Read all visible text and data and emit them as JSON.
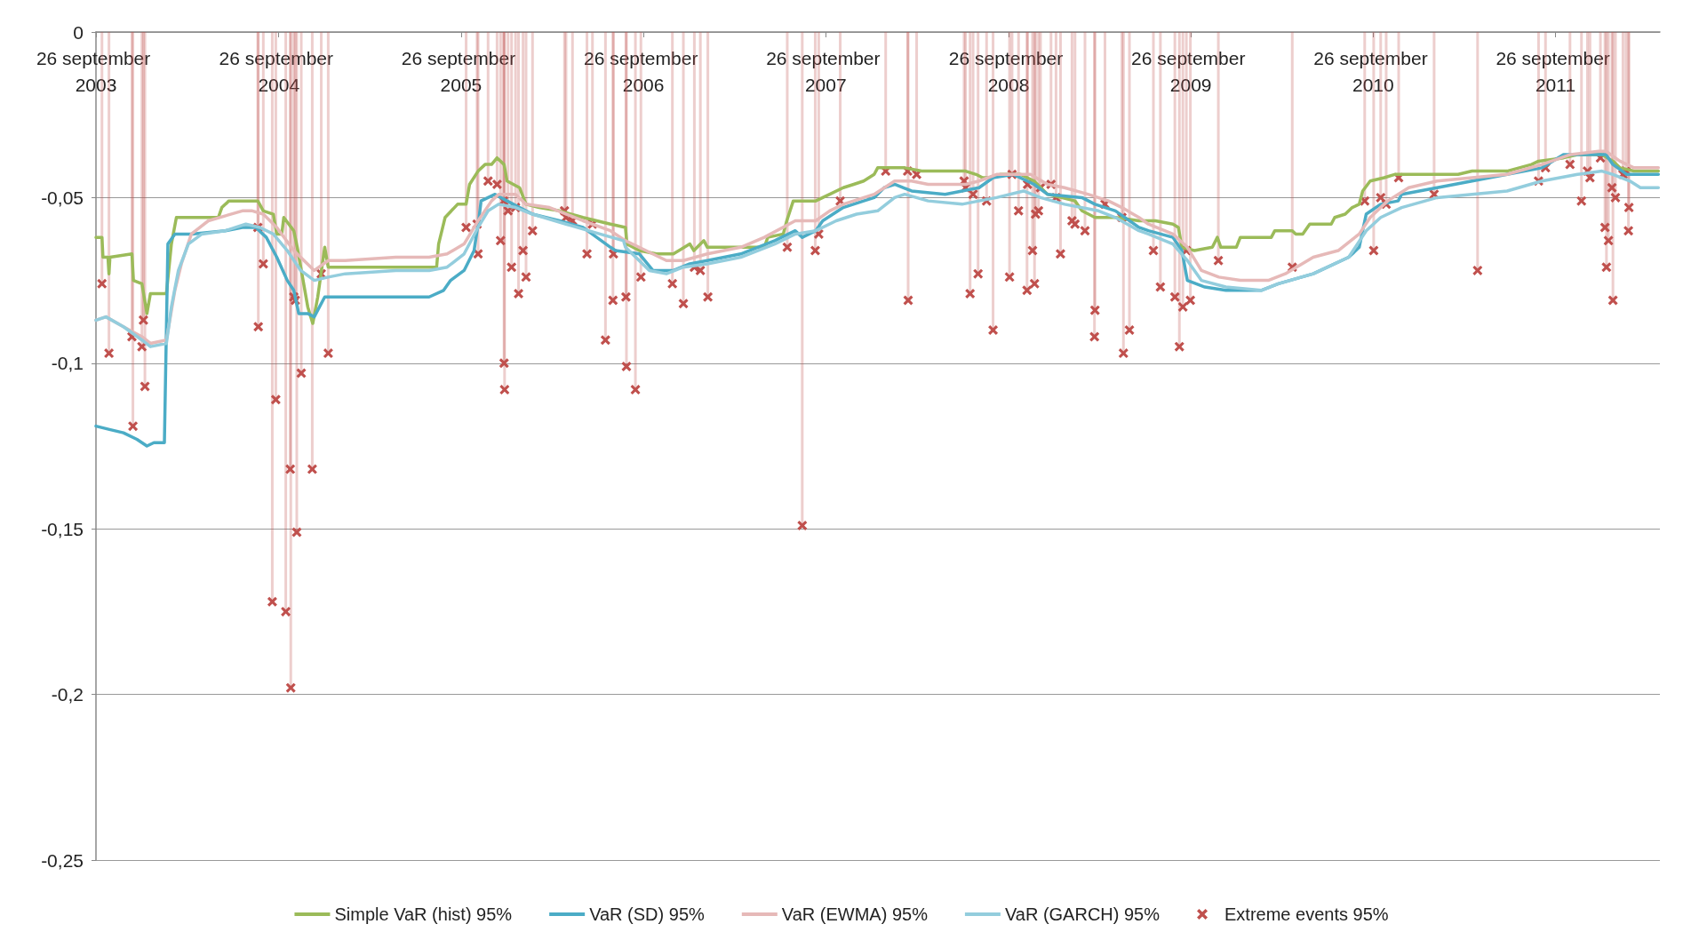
{
  "chart_data": {
    "type": "line",
    "legend": "bottom",
    "grid": "y",
    "marker": "none",
    "xlim": [
      "2003-09-26",
      "2012-04-22"
    ],
    "xticks": [
      {
        "value": "2003-09-26",
        "label": "26 september 2003"
      },
      {
        "value": "2004-09-26",
        "label": "26 september 2004"
      },
      {
        "value": "2005-09-26",
        "label": "26 september 2005"
      },
      {
        "value": "2006-09-26",
        "label": "26 september 2006"
      },
      {
        "value": "2007-09-26",
        "label": "26 september 2007"
      },
      {
        "value": "2008-09-26",
        "label": "26 september 2008"
      },
      {
        "value": "2009-09-26",
        "label": "26 september 2009"
      },
      {
        "value": "2010-09-26",
        "label": "26 september 2010"
      },
      {
        "value": "2011-09-26",
        "label": "26 september 2011"
      }
    ],
    "ylim": [
      -0.25,
      0
    ],
    "yticks": [
      {
        "value": -0.25,
        "label": "-0,25"
      },
      {
        "value": -0.2,
        "label": "-0,2"
      },
      {
        "value": -0.15,
        "label": "-0,15"
      },
      {
        "value": -0.1,
        "label": "-0,1"
      },
      {
        "value": -0.05,
        "label": "-0,05"
      },
      0
    ],
    "series": [
      {
        "name": "Simple VaR (hist) 95%",
        "color": "#9bbb59",
        "x": [
          "2003-09-26",
          "2003-10-08",
          "2003-10-10",
          "2003-10-20",
          "2003-10-22",
          "2003-10-24",
          "2003-12-07",
          "2003-12-10",
          "2003-12-27",
          "2004-01-06",
          "2004-01-13",
          "2004-02-14",
          "2004-02-24",
          "2004-03-05",
          "2004-05-28",
          "2004-06-04",
          "2004-06-18",
          "2004-08-15",
          "2004-08-26",
          "2004-09-15",
          "2004-09-22",
          "2004-10-02",
          "2004-10-06",
          "2004-10-26",
          "2004-11-02",
          "2004-11-23",
          "2004-12-03",
          "2004-12-13",
          "2004-12-27",
          "2005-01-03",
          "2005-08-08",
          "2005-08-12",
          "2005-08-25",
          "2005-09-19",
          "2005-10-06",
          "2005-10-13",
          "2005-10-30",
          "2005-11-13",
          "2005-11-26",
          "2005-12-07",
          "2005-12-21",
          "2005-12-27",
          "2006-01-21",
          "2006-02-03",
          "2006-03-01",
          "2006-04-11",
          "2006-05-28",
          "2006-07-22",
          "2006-08-21",
          "2006-08-24",
          "2006-09-18",
          "2006-10-22",
          "2006-11-25",
          "2006-12-28",
          "2007-01-05",
          "2007-01-25",
          "2007-02-01",
          "2007-05-26",
          "2007-06-02",
          "2007-07-03",
          "2007-07-10",
          "2007-07-23",
          "2007-09-06",
          "2007-10-04",
          "2007-10-31",
          "2007-11-21",
          "2007-12-11",
          "2008-01-01",
          "2008-01-08",
          "2008-03-02",
          "2008-04-05",
          "2008-07-02",
          "2008-07-23",
          "2008-08-05",
          "2008-08-19",
          "2008-09-09",
          "2008-10-20",
          "2008-11-16",
          "2008-12-13",
          "2009-01-10",
          "2009-02-06",
          "2009-02-20",
          "2009-03-18",
          "2009-04-28",
          "2009-06-14",
          "2009-07-03",
          "2009-07-17",
          "2009-08-21",
          "2009-09-01",
          "2009-09-08",
          "2009-10-03",
          "2009-11-08",
          "2009-11-18",
          "2009-11-25",
          "2009-12-26",
          "2010-01-03",
          "2010-03-06",
          "2010-03-13",
          "2010-04-17",
          "2010-04-24",
          "2010-05-08",
          "2010-05-22",
          "2010-07-04",
          "2010-07-11",
          "2010-08-01",
          "2010-08-15",
          "2010-08-29",
          "2010-09-05",
          "2010-09-20",
          "2010-10-18",
          "2010-11-08",
          "2010-11-22",
          "2011-03-15",
          "2011-04-12",
          "2011-06-21",
          "2011-08-09",
          "2011-08-23",
          "2011-10-12",
          "2011-11-09",
          "2011-12-28",
          "2012-01-19",
          "2012-02-02",
          "2012-03-01",
          "2012-04-19"
        ],
        "values": [
          -0.062,
          -0.062,
          -0.068,
          -0.068,
          -0.073,
          -0.068,
          -0.067,
          -0.075,
          -0.076,
          -0.085,
          -0.079,
          -0.079,
          -0.064,
          -0.056,
          -0.056,
          -0.053,
          -0.051,
          -0.051,
          -0.054,
          -0.055,
          -0.061,
          -0.061,
          -0.056,
          -0.06,
          -0.065,
          -0.083,
          -0.088,
          -0.08,
          -0.065,
          -0.071,
          -0.071,
          -0.064,
          -0.056,
          -0.052,
          -0.052,
          -0.046,
          -0.042,
          -0.04,
          -0.04,
          -0.038,
          -0.04,
          -0.045,
          -0.047,
          -0.052,
          -0.053,
          -0.054,
          -0.056,
          -0.058,
          -0.059,
          -0.064,
          -0.066,
          -0.067,
          -0.067,
          -0.064,
          -0.066,
          -0.063,
          -0.065,
          -0.065,
          -0.062,
          -0.061,
          -0.057,
          -0.051,
          -0.051,
          -0.049,
          -0.047,
          -0.046,
          -0.045,
          -0.043,
          -0.041,
          -0.041,
          -0.042,
          -0.042,
          -0.043,
          -0.044,
          -0.044,
          -0.043,
          -0.043,
          -0.045,
          -0.049,
          -0.05,
          -0.051,
          -0.054,
          -0.056,
          -0.056,
          -0.057,
          -0.057,
          -0.057,
          -0.058,
          -0.059,
          -0.065,
          -0.066,
          -0.065,
          -0.062,
          -0.065,
          -0.065,
          -0.062,
          -0.062,
          -0.06,
          -0.06,
          -0.061,
          -0.061,
          -0.058,
          -0.058,
          -0.056,
          -0.055,
          -0.053,
          -0.052,
          -0.048,
          -0.045,
          -0.044,
          -0.043,
          -0.043,
          -0.043,
          -0.042,
          -0.042,
          -0.04,
          -0.039,
          -0.038,
          -0.037,
          -0.037,
          -0.039,
          -0.041,
          -0.042,
          -0.042
        ]
      },
      {
        "name": "VaR (SD) 95%",
        "color": "#4bacc6",
        "x": [
          "2003-09-26",
          "2003-10-23",
          "2003-11-20",
          "2003-12-17",
          "2004-01-06",
          "2004-01-20",
          "2004-02-10",
          "2004-02-17",
          "2004-03-02",
          "2004-04-04",
          "2004-06-11",
          "2004-07-15",
          "2004-08-11",
          "2004-09-01",
          "2004-09-22",
          "2004-10-13",
          "2004-10-26",
          "2004-11-05",
          "2004-11-23",
          "2004-12-06",
          "2004-12-27",
          "2005-01-16",
          "2005-07-24",
          "2005-08-22",
          "2005-09-05",
          "2005-10-02",
          "2005-10-22",
          "2005-11-01",
          "2005-11-05",
          "2005-12-03",
          "2005-12-27",
          "2006-01-21",
          "2006-02-16",
          "2006-04-11",
          "2006-05-28",
          "2006-07-22",
          "2006-08-01",
          "2006-09-18",
          "2006-10-15",
          "2006-11-25",
          "2006-12-28",
          "2007-02-01",
          "2007-04-09",
          "2007-06-16",
          "2007-07-27",
          "2007-08-10",
          "2007-09-06",
          "2007-09-20",
          "2007-10-31",
          "2007-12-11",
          "2008-01-01",
          "2008-01-21",
          "2008-02-11",
          "2008-03-16",
          "2008-05-22",
          "2008-06-25",
          "2008-07-29",
          "2008-08-26",
          "2008-10-06",
          "2008-11-16",
          "2008-12-13",
          "2009-02-20",
          "2009-03-18",
          "2009-04-28",
          "2009-06-14",
          "2009-07-03",
          "2009-08-21",
          "2009-09-08",
          "2009-09-19",
          "2009-10-24",
          "2009-12-05",
          "2010-02-14",
          "2010-03-20",
          "2010-05-29",
          "2010-08-08",
          "2010-08-29",
          "2010-09-12",
          "2010-10-11",
          "2010-11-15",
          "2010-11-22",
          "2011-02-01",
          "2011-04-12",
          "2011-06-21",
          "2011-08-30",
          "2011-10-12",
          "2011-11-09",
          "2012-01-05",
          "2012-01-19",
          "2012-02-16",
          "2012-04-19"
        ],
        "values": [
          -0.119,
          -0.12,
          -0.121,
          -0.123,
          -0.125,
          -0.124,
          -0.124,
          -0.064,
          -0.061,
          -0.061,
          -0.06,
          -0.059,
          -0.059,
          -0.062,
          -0.068,
          -0.075,
          -0.078,
          -0.085,
          -0.085,
          -0.086,
          -0.08,
          -0.08,
          -0.08,
          -0.078,
          -0.075,
          -0.072,
          -0.066,
          -0.056,
          -0.051,
          -0.049,
          -0.051,
          -0.053,
          -0.055,
          -0.057,
          -0.059,
          -0.065,
          -0.066,
          -0.067,
          -0.072,
          -0.072,
          -0.07,
          -0.069,
          -0.067,
          -0.063,
          -0.06,
          -0.062,
          -0.06,
          -0.057,
          -0.053,
          -0.051,
          -0.05,
          -0.047,
          -0.046,
          -0.048,
          -0.049,
          -0.048,
          -0.047,
          -0.044,
          -0.043,
          -0.046,
          -0.049,
          -0.05,
          -0.052,
          -0.054,
          -0.059,
          -0.06,
          -0.062,
          -0.066,
          -0.075,
          -0.077,
          -0.078,
          -0.078,
          -0.076,
          -0.073,
          -0.068,
          -0.065,
          -0.055,
          -0.052,
          -0.051,
          -0.049,
          -0.047,
          -0.045,
          -0.043,
          -0.041,
          -0.037,
          -0.037,
          -0.037,
          -0.04,
          -0.043,
          -0.043
        ]
      },
      {
        "name": "VaR (EWMA) 95%",
        "color": "#e6b9b8",
        "x": [
          "2003-09-26",
          "2003-10-16",
          "2003-11-20",
          "2003-12-27",
          "2004-01-13",
          "2004-02-14",
          "2004-03-02",
          "2004-03-15",
          "2004-04-04",
          "2004-05-08",
          "2004-07-15",
          "2004-08-04",
          "2004-08-26",
          "2004-09-22",
          "2004-10-26",
          "2004-12-06",
          "2005-01-03",
          "2005-02-06",
          "2005-05-18",
          "2005-07-24",
          "2005-08-29",
          "2005-10-02",
          "2005-10-30",
          "2005-11-26",
          "2005-12-10",
          "2006-01-13",
          "2006-02-03",
          "2006-03-22",
          "2006-05-28",
          "2006-07-22",
          "2006-08-21",
          "2006-10-01",
          "2006-11-11",
          "2006-12-15",
          "2007-02-01",
          "2007-04-09",
          "2007-05-26",
          "2007-07-27",
          "2007-09-06",
          "2007-10-04",
          "2007-10-31",
          "2008-01-01",
          "2008-02-11",
          "2008-03-16",
          "2008-04-18",
          "2008-05-22",
          "2008-07-02",
          "2008-07-29",
          "2008-09-02",
          "2008-10-06",
          "2008-11-09",
          "2008-12-13",
          "2009-01-16",
          "2009-03-04",
          "2009-04-14",
          "2009-05-11",
          "2009-06-14",
          "2009-07-03",
          "2009-08-21",
          "2009-09-19",
          "2009-10-17",
          "2009-11-21",
          "2010-01-03",
          "2010-02-28",
          "2010-04-03",
          "2010-05-29",
          "2010-07-18",
          "2010-08-29",
          "2010-09-20",
          "2010-10-25",
          "2010-12-06",
          "2011-02-01",
          "2011-04-12",
          "2011-06-21",
          "2011-08-30",
          "2011-10-26",
          "2011-12-21",
          "2012-01-05",
          "2012-02-02",
          "2012-03-01",
          "2012-04-19"
        ],
        "values": [
          -0.087,
          -0.086,
          -0.089,
          -0.092,
          -0.094,
          -0.093,
          -0.078,
          -0.07,
          -0.061,
          -0.057,
          -0.054,
          -0.054,
          -0.055,
          -0.059,
          -0.066,
          -0.072,
          -0.069,
          -0.069,
          -0.068,
          -0.068,
          -0.067,
          -0.064,
          -0.057,
          -0.051,
          -0.049,
          -0.049,
          -0.052,
          -0.053,
          -0.057,
          -0.06,
          -0.063,
          -0.066,
          -0.069,
          -0.069,
          -0.067,
          -0.065,
          -0.062,
          -0.057,
          -0.057,
          -0.054,
          -0.052,
          -0.049,
          -0.045,
          -0.045,
          -0.046,
          -0.046,
          -0.046,
          -0.045,
          -0.043,
          -0.043,
          -0.043,
          -0.046,
          -0.047,
          -0.049,
          -0.051,
          -0.053,
          -0.056,
          -0.058,
          -0.061,
          -0.065,
          -0.072,
          -0.074,
          -0.075,
          -0.075,
          -0.073,
          -0.068,
          -0.066,
          -0.061,
          -0.056,
          -0.051,
          -0.047,
          -0.045,
          -0.044,
          -0.043,
          -0.04,
          -0.037,
          -0.036,
          -0.036,
          -0.039,
          -0.041,
          -0.041
        ]
      },
      {
        "name": "VaR (GARCH) 95%",
        "color": "#93cddd",
        "x": [
          "2003-09-26",
          "2003-10-16",
          "2003-11-20",
          "2003-12-27",
          "2004-01-13",
          "2004-02-14",
          "2004-02-24",
          "2004-03-09",
          "2004-03-29",
          "2004-04-25",
          "2004-06-11",
          "2004-07-22",
          "2004-08-19",
          "2004-09-15",
          "2004-10-13",
          "2004-11-09",
          "2004-12-06",
          "2005-01-03",
          "2005-02-06",
          "2005-05-18",
          "2005-07-24",
          "2005-08-29",
          "2005-10-02",
          "2005-10-30",
          "2005-11-19",
          "2005-12-10",
          "2006-01-13",
          "2006-02-16",
          "2006-04-24",
          "2006-07-01",
          "2006-08-17",
          "2006-08-21",
          "2006-10-08",
          "2006-11-11",
          "2006-12-15",
          "2007-02-01",
          "2007-04-09",
          "2007-06-16",
          "2007-07-27",
          "2007-09-06",
          "2007-10-17",
          "2007-11-27",
          "2008-01-08",
          "2008-02-11",
          "2008-03-02",
          "2008-04-18",
          "2008-06-25",
          "2008-07-29",
          "2008-09-02",
          "2008-10-26",
          "2008-11-29",
          "2009-01-16",
          "2009-03-25",
          "2009-04-28",
          "2009-06-14",
          "2009-07-03",
          "2009-08-21",
          "2009-09-19",
          "2009-10-17",
          "2009-12-05",
          "2010-02-14",
          "2010-03-20",
          "2010-05-29",
          "2010-08-08",
          "2010-09-12",
          "2010-10-11",
          "2010-11-22",
          "2011-02-01",
          "2011-04-12",
          "2011-06-21",
          "2011-08-30",
          "2011-11-09",
          "2011-12-28",
          "2012-01-19",
          "2012-02-22",
          "2012-03-14",
          "2012-04-19"
        ],
        "values": [
          -0.087,
          -0.086,
          -0.089,
          -0.093,
          -0.095,
          -0.094,
          -0.083,
          -0.072,
          -0.064,
          -0.061,
          -0.06,
          -0.058,
          -0.059,
          -0.061,
          -0.066,
          -0.072,
          -0.075,
          -0.074,
          -0.073,
          -0.072,
          -0.072,
          -0.071,
          -0.067,
          -0.059,
          -0.054,
          -0.052,
          -0.053,
          -0.055,
          -0.058,
          -0.061,
          -0.063,
          -0.065,
          -0.072,
          -0.073,
          -0.071,
          -0.07,
          -0.068,
          -0.064,
          -0.061,
          -0.06,
          -0.057,
          -0.055,
          -0.054,
          -0.05,
          -0.049,
          -0.051,
          -0.052,
          -0.051,
          -0.05,
          -0.048,
          -0.05,
          -0.052,
          -0.054,
          -0.056,
          -0.06,
          -0.061,
          -0.064,
          -0.069,
          -0.075,
          -0.077,
          -0.078,
          -0.076,
          -0.073,
          -0.068,
          -0.06,
          -0.056,
          -0.053,
          -0.05,
          -0.049,
          -0.048,
          -0.045,
          -0.043,
          -0.042,
          -0.043,
          -0.045,
          -0.047,
          -0.047
        ]
      },
      {
        "name": "Extreme events 95%",
        "type": "lollipop",
        "marker": "cross",
        "color": "#c0504d",
        "x": [
          "2003-10-08",
          "2003-10-22",
          "2003-12-07",
          "2003-12-09",
          "2003-12-27",
          "2003-12-30",
          "2004-01-02",
          "2004-08-15",
          "2004-08-16",
          "2004-08-26",
          "2004-09-13",
          "2004-09-20",
          "2004-10-10",
          "2004-10-19",
          "2004-10-20",
          "2004-10-26",
          "2004-10-29",
          "2004-11-01",
          "2004-11-10",
          "2004-12-02",
          "2004-12-20",
          "2005-01-03",
          "2005-10-06",
          "2005-10-28",
          "2005-10-30",
          "2005-11-19",
          "2005-12-07",
          "2005-12-14",
          "2005-12-20",
          "2005-12-21",
          "2005-12-22",
          "2005-12-29",
          "2006-01-05",
          "2006-01-13",
          "2006-01-19",
          "2006-01-28",
          "2006-02-03",
          "2006-02-16",
          "2006-04-21",
          "2006-04-24",
          "2006-05-07",
          "2006-06-05",
          "2006-06-16",
          "2006-07-12",
          "2006-07-27",
          "2006-07-28",
          "2006-08-22",
          "2006-08-23",
          "2006-09-10",
          "2006-09-21",
          "2006-11-23",
          "2006-12-15",
          "2007-01-06",
          "2007-01-18",
          "2007-02-02",
          "2007-07-11",
          "2007-08-10",
          "2007-09-05",
          "2007-09-12",
          "2007-10-25",
          "2008-01-24",
          "2008-03-08",
          "2008-03-09",
          "2008-03-26",
          "2008-06-29",
          "2008-07-02",
          "2008-07-11",
          "2008-07-17",
          "2008-07-27",
          "2008-08-13",
          "2008-08-26",
          "2008-09-28",
          "2008-10-03",
          "2008-10-16",
          "2008-11-02",
          "2008-11-03",
          "2008-11-13",
          "2008-11-17",
          "2008-11-19",
          "2008-11-25",
          "2008-11-29",
          "2008-12-20",
          "2008-12-30",
          "2009-01-08",
          "2009-01-31",
          "2009-02-06",
          "2009-02-26",
          "2009-03-17",
          "2009-03-18",
          "2009-04-07",
          "2009-05-11",
          "2009-05-14",
          "2009-05-26",
          "2009-07-13",
          "2009-07-27",
          "2009-08-25",
          "2009-09-03",
          "2009-09-10",
          "2009-09-17",
          "2009-09-25",
          "2009-11-20",
          "2010-04-17",
          "2010-09-09",
          "2010-09-27",
          "2010-10-11",
          "2010-10-22",
          "2010-11-16",
          "2011-01-26",
          "2011-04-23",
          "2011-08-23",
          "2011-09-06",
          "2011-10-25",
          "2011-11-17",
          "2011-11-29",
          "2011-12-04",
          "2011-12-25",
          "2012-01-03",
          "2012-01-06",
          "2012-01-10",
          "2012-01-17",
          "2012-01-19",
          "2012-01-24",
          "2012-02-08",
          "2012-02-14",
          "2012-02-19",
          "2012-02-20"
        ],
        "values": [
          -0.076,
          -0.097,
          -0.092,
          -0.119,
          -0.095,
          -0.087,
          -0.107,
          -0.059,
          -0.089,
          -0.07,
          -0.172,
          -0.111,
          -0.175,
          -0.132,
          -0.198,
          -0.08,
          -0.081,
          -0.151,
          -0.103,
          -0.132,
          -0.073,
          -0.097,
          -0.059,
          -0.058,
          -0.067,
          -0.045,
          -0.046,
          -0.063,
          -0.051,
          -0.1,
          -0.108,
          -0.054,
          -0.071,
          -0.053,
          -0.079,
          -0.066,
          -0.074,
          -0.06,
          -0.054,
          -0.056,
          -0.057,
          -0.067,
          -0.058,
          -0.093,
          -0.081,
          -0.067,
          -0.08,
          -0.101,
          -0.108,
          -0.074,
          -0.076,
          -0.082,
          -0.071,
          -0.072,
          -0.08,
          -0.065,
          -0.149,
          -0.066,
          -0.061,
          -0.051,
          -0.042,
          -0.042,
          -0.081,
          -0.043,
          -0.045,
          -0.047,
          -0.079,
          -0.049,
          -0.073,
          -0.051,
          -0.09,
          -0.074,
          -0.043,
          -0.054,
          -0.078,
          -0.046,
          -0.066,
          -0.076,
          -0.055,
          -0.054,
          -0.047,
          -0.046,
          -0.05,
          -0.067,
          -0.057,
          -0.058,
          -0.06,
          -0.092,
          -0.084,
          -0.052,
          -0.056,
          -0.097,
          -0.09,
          -0.066,
          -0.077,
          -0.08,
          -0.095,
          -0.083,
          -0.066,
          -0.081,
          -0.069,
          -0.071,
          -0.051,
          -0.066,
          -0.05,
          -0.052,
          -0.044,
          -0.049,
          -0.072,
          -0.045,
          -0.041,
          -0.04,
          -0.051,
          -0.042,
          -0.044,
          -0.038,
          -0.059,
          -0.071,
          -0.063,
          -0.047,
          -0.081,
          -0.05,
          -0.043,
          -0.042,
          -0.06,
          -0.053
        ]
      }
    ]
  }
}
